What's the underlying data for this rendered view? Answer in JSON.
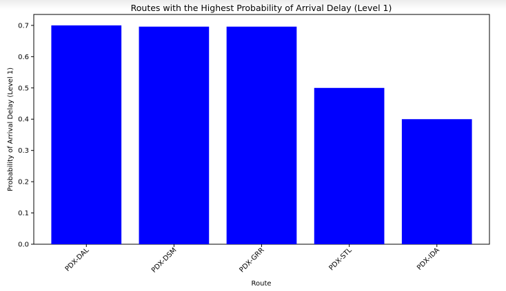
{
  "chart_data": {
    "type": "bar",
    "title": "Routes with the Highest Probability of Arrival Delay (Level 1)",
    "xlabel": "Route",
    "ylabel": "Probability of Arrival Delay (Level 1)",
    "categories": [
      "PDX-DAL",
      "PDX-DSM",
      "PDX-GRR",
      "PDX-STL",
      "PDX-IDA"
    ],
    "values": [
      0.7,
      0.696,
      0.696,
      0.5,
      0.4
    ],
    "ylim": [
      0,
      0.735
    ],
    "yticks": [
      "0.0",
      "0.1",
      "0.2",
      "0.3",
      "0.4",
      "0.5",
      "0.6",
      "0.7"
    ],
    "bar_color": "#0000ff",
    "grid": false
  }
}
